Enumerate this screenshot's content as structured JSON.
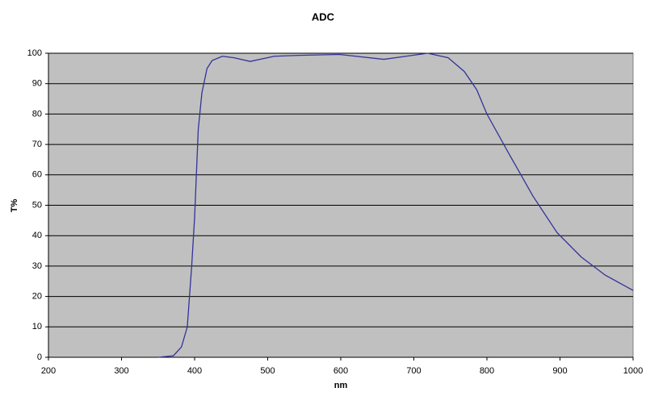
{
  "chart_data": {
    "type": "line",
    "title": "ADC",
    "x_label": "nm",
    "y_label": "T%",
    "x": [
      350,
      371,
      382,
      390,
      396,
      400,
      405,
      410,
      417,
      424,
      438,
      454,
      476,
      509,
      543,
      598,
      659,
      719,
      747,
      769,
      786,
      800,
      830,
      863,
      896,
      929,
      962,
      1000
    ],
    "series": [
      {
        "name": "ADC",
        "color": "#33339a",
        "values": [
          0,
          0.5,
          3.4,
          10,
          30,
          46,
          75,
          87,
          95,
          97.6,
          99,
          98.5,
          97.3,
          99,
          99.3,
          99.6,
          98,
          100,
          98.5,
          94,
          88,
          80,
          67,
          53,
          41,
          33,
          27,
          22
        ]
      }
    ],
    "xlim": [
      200,
      1000
    ],
    "ylim": [
      0,
      100
    ],
    "xticks": [
      200,
      300,
      400,
      500,
      600,
      700,
      800,
      900,
      1000
    ],
    "yticks": [
      0,
      10,
      20,
      30,
      40,
      50,
      60,
      70,
      80,
      90,
      100
    ],
    "grid": true,
    "background": "#c0c0c0"
  }
}
